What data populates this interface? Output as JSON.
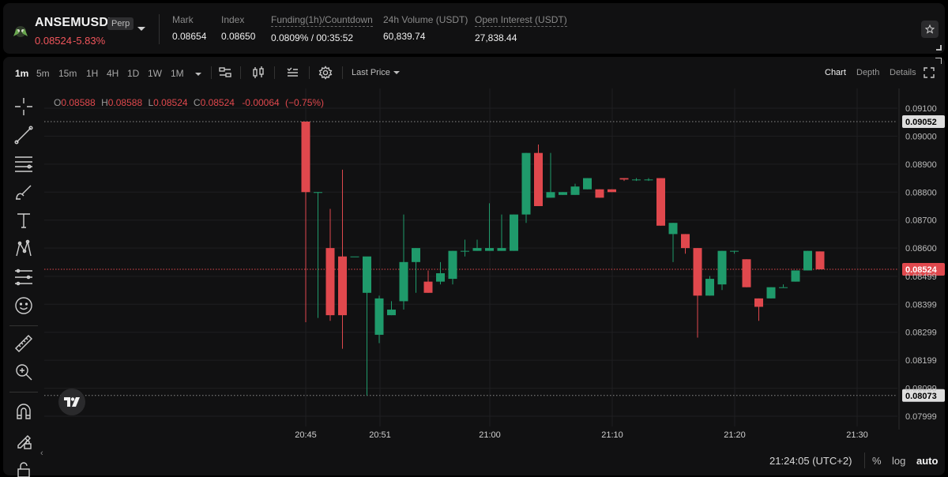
{
  "ticker": {
    "symbol": "ANSEMUSDT",
    "badge": "Perp",
    "last_price": "0.08524",
    "change": "-5.83%",
    "stats": [
      {
        "label": "Mark",
        "value": "0.08654",
        "dotted": false
      },
      {
        "label": "Index",
        "value": "0.08650",
        "dotted": false
      },
      {
        "label": "Funding(1h)/Countdown",
        "value": "0.0809% / 00:35:52",
        "dotted": true
      },
      {
        "label": "24h Volume (USDT)",
        "value": "60,839.74",
        "dotted": false
      },
      {
        "label": "Open Interest (USDT)",
        "value": "27,838.44",
        "dotted": true
      }
    ],
    "icons": {
      "favorite": "star-icon",
      "dropdown": "chevron-down-icon"
    }
  },
  "toolbar": {
    "timeframes": [
      "1m",
      "5m",
      "15m",
      "1H",
      "4H",
      "1D",
      "1W",
      "1M"
    ],
    "active_timeframe": "1m",
    "price_source": "Last Price",
    "views": [
      "Chart",
      "Depth",
      "Details"
    ],
    "active_view": "Chart",
    "icons": [
      "indicators-icon",
      "candle-type-icon",
      "templates-icon",
      "settings-icon",
      "fullscreen-icon"
    ]
  },
  "drawing_tools": [
    "crosshair-icon",
    "trend-line-icon",
    "fib-lines-icon",
    "brush-icon",
    "text-icon",
    "pattern-icon",
    "prediction-icon",
    "emoji-icon",
    "ruler-icon",
    "zoom-in-icon",
    "magnet-icon",
    "lock-drawing-icon",
    "lock-icon"
  ],
  "chart": {
    "ohlc": {
      "o": "0.08588",
      "h": "0.08588",
      "l": "0.08524",
      "c": "0.08524",
      "chg": "-0.00064",
      "pct": "(−0.75%)"
    },
    "colors": {
      "up": "#1f9a6b",
      "down": "#e0484d",
      "grid": "#1f1f21"
    }
  },
  "chart_data": {
    "type": "candlestick",
    "y_ticks": [
      "0.09100",
      "0.09000",
      "0.08900",
      "0.08800",
      "0.08700",
      "0.08600",
      "0.08499",
      "0.08399",
      "0.08299",
      "0.08199",
      "0.08099",
      "0.07999"
    ],
    "ylim": [
      0.0795,
      0.0913
    ],
    "x_ticks": [
      "20:45",
      "20:51",
      "21:00",
      "21:10",
      "21:20",
      "21:30"
    ],
    "high_marker": "0.09052",
    "low_marker": "0.08073",
    "current_marker": "0.08524",
    "candles_start": "20:45",
    "candles": [
      {
        "o": 0.09052,
        "h": 0.09052,
        "l": 0.08335,
        "c": 0.088
      },
      {
        "o": 0.088,
        "h": 0.088,
        "l": 0.0835,
        "c": 0.088
      },
      {
        "o": 0.086,
        "h": 0.0874,
        "l": 0.0834,
        "c": 0.0836
      },
      {
        "o": 0.0857,
        "h": 0.0888,
        "l": 0.0824,
        "c": 0.0836
      },
      {
        "o": 0.0857,
        "h": 0.0857,
        "l": 0.0857,
        "c": 0.0857
      },
      {
        "o": 0.0844,
        "h": 0.0856,
        "l": 0.08073,
        "c": 0.0857
      },
      {
        "o": 0.0829,
        "h": 0.0843,
        "l": 0.0826,
        "c": 0.0842
      },
      {
        "o": 0.0836,
        "h": 0.0841,
        "l": 0.0836,
        "c": 0.0838
      },
      {
        "o": 0.0841,
        "h": 0.0872,
        "l": 0.0838,
        "c": 0.0855
      },
      {
        "o": 0.0855,
        "h": 0.086,
        "l": 0.0844,
        "c": 0.086
      },
      {
        "o": 0.0848,
        "h": 0.0852,
        "l": 0.0844,
        "c": 0.0844
      },
      {
        "o": 0.0848,
        "h": 0.0855,
        "l": 0.0847,
        "c": 0.0851
      },
      {
        "o": 0.0849,
        "h": 0.0859,
        "l": 0.0847,
        "c": 0.0859
      },
      {
        "o": 0.0859,
        "h": 0.0863,
        "l": 0.0857,
        "c": 0.0859
      },
      {
        "o": 0.0859,
        "h": 0.0863,
        "l": 0.0859,
        "c": 0.086
      },
      {
        "o": 0.0859,
        "h": 0.0876,
        "l": 0.0859,
        "c": 0.086
      },
      {
        "o": 0.0859,
        "h": 0.0872,
        "l": 0.0859,
        "c": 0.086
      },
      {
        "o": 0.0859,
        "h": 0.0872,
        "l": 0.0859,
        "c": 0.0872
      },
      {
        "o": 0.0872,
        "h": 0.0894,
        "l": 0.0869,
        "c": 0.0894
      },
      {
        "o": 0.0894,
        "h": 0.0897,
        "l": 0.0875,
        "c": 0.0875
      },
      {
        "o": 0.0878,
        "h": 0.0894,
        "l": 0.0878,
        "c": 0.088
      },
      {
        "o": 0.0879,
        "h": 0.088,
        "l": 0.0879,
        "c": 0.088
      },
      {
        "o": 0.0879,
        "h": 0.0883,
        "l": 0.0879,
        "c": 0.0882
      },
      {
        "o": 0.0881,
        "h": 0.0885,
        "l": 0.0881,
        "c": 0.0885
      },
      {
        "o": 0.0881,
        "h": 0.0881,
        "l": 0.0878,
        "c": 0.0878
      },
      {
        "o": 0.0881,
        "h": 0.0881,
        "l": 0.088,
        "c": 0.088
      },
      {
        "o": 0.0885,
        "h": 0.0885,
        "l": 0.0884,
        "c": 0.08845
      },
      {
        "o": 0.08845,
        "h": 0.0885,
        "l": 0.0884,
        "c": 0.08845
      },
      {
        "o": 0.08845,
        "h": 0.0885,
        "l": 0.0884,
        "c": 0.08845
      },
      {
        "o": 0.0885,
        "h": 0.0885,
        "l": 0.0868,
        "c": 0.0868
      },
      {
        "o": 0.0865,
        "h": 0.0869,
        "l": 0.0855,
        "c": 0.0869
      },
      {
        "o": 0.0865,
        "h": 0.0865,
        "l": 0.0858,
        "c": 0.086
      },
      {
        "o": 0.086,
        "h": 0.086,
        "l": 0.0828,
        "c": 0.0843
      },
      {
        "o": 0.0843,
        "h": 0.085,
        "l": 0.0843,
        "c": 0.0849
      },
      {
        "o": 0.0847,
        "h": 0.0859,
        "l": 0.0845,
        "c": 0.0859
      },
      {
        "o": 0.0859,
        "h": 0.0859,
        "l": 0.0858,
        "c": 0.0859
      },
      {
        "o": 0.0856,
        "h": 0.0856,
        "l": 0.0846,
        "c": 0.0846
      },
      {
        "o": 0.0842,
        "h": 0.0842,
        "l": 0.0834,
        "c": 0.0839
      },
      {
        "o": 0.0842,
        "h": 0.0846,
        "l": 0.0842,
        "c": 0.0846
      },
      {
        "o": 0.0846,
        "h": 0.0847,
        "l": 0.0846,
        "c": 0.0846
      },
      {
        "o": 0.0848,
        "h": 0.0852,
        "l": 0.0848,
        "c": 0.0852
      },
      {
        "o": 0.0852,
        "h": 0.0859,
        "l": 0.0852,
        "c": 0.0859
      },
      {
        "o": 0.08588,
        "h": 0.08588,
        "l": 0.08524,
        "c": 0.08524
      }
    ]
  },
  "bottom": {
    "clock": "21:24:05 (UTC+2)",
    "options": [
      "%",
      "log",
      "auto"
    ],
    "active_option": "auto"
  }
}
